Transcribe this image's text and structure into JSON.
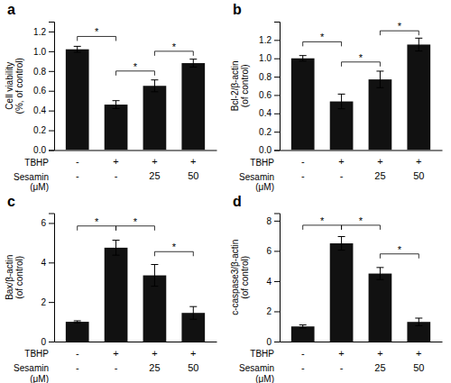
{
  "chart_data": [
    {
      "type": "bar",
      "title": "a",
      "ylabel": "Cell viability\n(%, of control)",
      "xlabel": [
        "TBHP",
        "Sesamin\n(μM)"
      ],
      "categories": [
        [
          "-",
          "-"
        ],
        [
          "+",
          "-"
        ],
        [
          "+",
          "25"
        ],
        [
          "+",
          "50"
        ]
      ],
      "values": [
        1.02,
        0.46,
        0.65,
        0.88
      ],
      "errors": [
        0.03,
        0.04,
        0.06,
        0.04
      ],
      "color": "#111111",
      "ylim": [
        0,
        1.3
      ],
      "yticks": [
        {
          "value": 0.0,
          "label": "0.0"
        },
        0.2,
        0.4,
        0.6,
        0.8,
        {
          "value": 1.0,
          "label": "1.0"
        },
        1.2
      ],
      "grid": false,
      "annotations": [
        {
          "from": 0,
          "to": 1,
          "y": 1.15,
          "text": "*"
        },
        {
          "from": 1,
          "to": 2,
          "y": 0.8,
          "text": "*"
        },
        {
          "from": 2,
          "to": 3,
          "y": 1.0,
          "text": "*"
        }
      ]
    },
    {
      "type": "bar",
      "title": "b",
      "ylabel": "Bcl-2/β-actin\n(of control)",
      "xlabel": [
        "TBHP",
        "Sesamin\n(μM)"
      ],
      "categories": [
        [
          "-",
          "-"
        ],
        [
          "+",
          "-"
        ],
        [
          "+",
          "25"
        ],
        [
          "+",
          "50"
        ]
      ],
      "values": [
        1.0,
        0.53,
        0.77,
        1.15
      ],
      "errors": [
        0.03,
        0.08,
        0.09,
        0.07
      ],
      "color": "#111111",
      "ylim": [
        0,
        1.4
      ],
      "yticks": [
        {
          "value": 0.0,
          "label": "0.0"
        },
        0.2,
        0.4,
        0.6,
        0.8,
        {
          "value": 1.0,
          "label": "1.0"
        },
        1.2
      ],
      "grid": false,
      "annotations": [
        {
          "from": 0,
          "to": 1,
          "y": 1.18,
          "text": "*"
        },
        {
          "from": 1,
          "to": 2,
          "y": 0.96,
          "text": "*"
        },
        {
          "from": 2,
          "to": 3,
          "y": 1.3,
          "text": "*"
        }
      ]
    },
    {
      "type": "bar",
      "title": "c",
      "ylabel": "Bax/β-actin\n(of control)",
      "xlabel": [
        "TBHP",
        "Sesamin\n(μM)"
      ],
      "categories": [
        [
          "-",
          "-"
        ],
        [
          "+",
          "-"
        ],
        [
          "+",
          "25"
        ],
        [
          "+",
          "50"
        ]
      ],
      "values": [
        1.0,
        4.75,
        3.35,
        1.45
      ],
      "errors": [
        0.05,
        0.38,
        0.55,
        0.32
      ],
      "color": "#111111",
      "ylim": [
        0,
        6.5
      ],
      "yticks": [
        0,
        2,
        4,
        6
      ],
      "grid": false,
      "annotations": [
        {
          "from": 0,
          "to": 1,
          "y": 5.85,
          "text": "*"
        },
        {
          "from": 1,
          "to": 2,
          "y": 5.85,
          "text": "*"
        },
        {
          "from": 2,
          "to": 3,
          "y": 4.55,
          "text": "*"
        }
      ]
    },
    {
      "type": "bar",
      "title": "d",
      "ylabel": "c-caspase3/β-actin\n(of control)",
      "xlabel": [
        "TBHP",
        "Sesamin\n(μM)"
      ],
      "categories": [
        [
          "-",
          "-"
        ],
        [
          "+",
          "-"
        ],
        [
          "+",
          "25"
        ],
        [
          "+",
          "50"
        ]
      ],
      "values": [
        1.0,
        6.5,
        4.5,
        1.3
      ],
      "errors": [
        0.1,
        0.45,
        0.4,
        0.25
      ],
      "color": "#111111",
      "ylim": [
        0,
        8.5
      ],
      "yticks": [
        0,
        2,
        4,
        6,
        8
      ],
      "grid": false,
      "annotations": [
        {
          "from": 0,
          "to": 1,
          "y": 7.7,
          "text": "*"
        },
        {
          "from": 1,
          "to": 2,
          "y": 7.7,
          "text": "*"
        },
        {
          "from": 2,
          "to": 3,
          "y": 5.8,
          "text": "*"
        }
      ]
    }
  ]
}
